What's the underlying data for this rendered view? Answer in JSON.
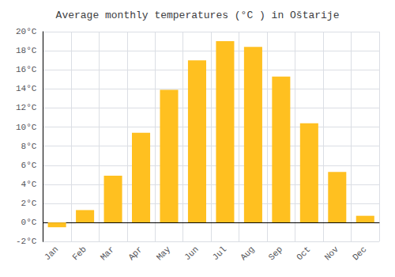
{
  "chart_data": {
    "type": "bar",
    "title": "Average monthly temperatures (°C ) in Oštarije",
    "categories": [
      "Jan",
      "Feb",
      "Mar",
      "Apr",
      "May",
      "Jun",
      "Jul",
      "Aug",
      "Sep",
      "Oct",
      "Nov",
      "Dec"
    ],
    "values": [
      -0.5,
      1.3,
      4.9,
      9.4,
      13.9,
      17.0,
      19.0,
      18.4,
      15.3,
      10.4,
      5.3,
      0.7
    ],
    "color": "#FFC020",
    "ylim": [
      -2,
      20
    ],
    "yticks": [
      {
        "value": -2,
        "label": "-2°C"
      },
      {
        "value": 0,
        "label": "0°C"
      },
      {
        "value": 2,
        "label": "2°C"
      },
      {
        "value": 4,
        "label": "4°C"
      },
      {
        "value": 6,
        "label": "6°C"
      },
      {
        "value": 8,
        "label": "8°C"
      },
      {
        "value": 10,
        "label": "10°C"
      },
      {
        "value": 12,
        "label": "12°C"
      },
      {
        "value": 14,
        "label": "14°C"
      },
      {
        "value": 16,
        "label": "16°C"
      },
      {
        "value": 18,
        "label": "18°C"
      },
      {
        "value": 20,
        "label": "20°C"
      }
    ],
    "grid": true
  }
}
